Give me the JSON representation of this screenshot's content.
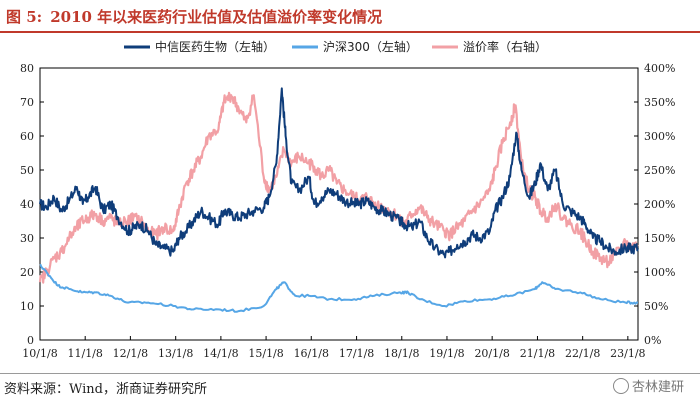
{
  "figure": {
    "label": "图 5:",
    "title": "2010 年以来医药行业估值及估值溢价率变化情况",
    "source": "资料来源：Wind，浙商证券研究所",
    "watermark": "杏林建研",
    "watermark_icon": "wechat-icon"
  },
  "chart_data": {
    "type": "line",
    "title": "2010 年以来医药行业估值及估值溢价率变化情况",
    "legend_position": "top",
    "grid": false,
    "x_ticks": [
      "10/1/8",
      "11/1/8",
      "12/1/8",
      "13/1/8",
      "14/1/8",
      "15/1/8",
      "16/1/8",
      "17/1/8",
      "18/1/8",
      "19/1/8",
      "20/1/8",
      "21/1/8",
      "22/1/8",
      "23/1/8"
    ],
    "x_range": [
      "2010-01-08",
      "2023-03-31"
    ],
    "y_left": {
      "ticks": [
        "0",
        "10",
        "20",
        "30",
        "40",
        "50",
        "60",
        "70",
        "80"
      ],
      "range": [
        0,
        80
      ]
    },
    "y_right": {
      "ticks": [
        "0%",
        "50%",
        "100%",
        "150%",
        "200%",
        "250%",
        "300%",
        "350%",
        "400%"
      ],
      "range": [
        0,
        4
      ]
    },
    "series": [
      {
        "name": "中信医药生物（左轴）",
        "axis": "left",
        "color": "#0f3d7a",
        "points": [
          [
            "2010-01-08",
            40
          ],
          [
            "2010-03-01",
            39
          ],
          [
            "2010-05-01",
            42
          ],
          [
            "2010-07-01",
            38
          ],
          [
            "2010-09-01",
            41
          ],
          [
            "2010-11-01",
            45
          ],
          [
            "2010-12-20",
            40
          ],
          [
            "2011-02-01",
            42
          ],
          [
            "2011-04-01",
            45
          ],
          [
            "2011-06-01",
            38
          ],
          [
            "2011-08-01",
            40
          ],
          [
            "2011-10-01",
            36
          ],
          [
            "2011-12-20",
            32
          ],
          [
            "2012-02-01",
            33
          ],
          [
            "2012-04-01",
            34
          ],
          [
            "2012-06-01",
            32
          ],
          [
            "2012-08-01",
            28
          ],
          [
            "2012-10-01",
            27
          ],
          [
            "2012-12-20",
            26
          ],
          [
            "2013-02-01",
            30
          ],
          [
            "2013-04-01",
            32
          ],
          [
            "2013-06-01",
            35
          ],
          [
            "2013-08-01",
            38
          ],
          [
            "2013-10-01",
            36
          ],
          [
            "2013-12-20",
            34
          ],
          [
            "2014-02-01",
            38
          ],
          [
            "2014-04-01",
            37
          ],
          [
            "2014-06-01",
            36
          ],
          [
            "2014-08-01",
            37
          ],
          [
            "2014-10-01",
            38
          ],
          [
            "2014-12-20",
            39
          ],
          [
            "2015-02-01",
            42
          ],
          [
            "2015-04-01",
            52
          ],
          [
            "2015-05-15",
            74
          ],
          [
            "2015-06-15",
            60
          ],
          [
            "2015-08-01",
            46
          ],
          [
            "2015-10-01",
            44
          ],
          [
            "2015-12-20",
            48
          ],
          [
            "2016-02-01",
            40
          ],
          [
            "2016-04-01",
            42
          ],
          [
            "2016-06-01",
            44
          ],
          [
            "2016-08-01",
            43
          ],
          [
            "2016-10-01",
            41
          ],
          [
            "2016-12-20",
            40
          ],
          [
            "2017-02-01",
            40
          ],
          [
            "2017-04-01",
            41
          ],
          [
            "2017-06-01",
            39
          ],
          [
            "2017-08-01",
            38
          ],
          [
            "2017-10-01",
            37
          ],
          [
            "2017-12-20",
            35
          ],
          [
            "2018-02-01",
            34
          ],
          [
            "2018-04-01",
            33
          ],
          [
            "2018-06-01",
            35
          ],
          [
            "2018-08-01",
            30
          ],
          [
            "2018-10-01",
            27
          ],
          [
            "2018-12-20",
            25
          ],
          [
            "2019-02-01",
            26
          ],
          [
            "2019-04-01",
            28
          ],
          [
            "2019-06-01",
            29
          ],
          [
            "2019-08-01",
            31
          ],
          [
            "2019-10-01",
            30
          ],
          [
            "2019-12-20",
            32
          ],
          [
            "2020-02-01",
            38
          ],
          [
            "2020-04-01",
            42
          ],
          [
            "2020-06-01",
            48
          ],
          [
            "2020-07-20",
            61
          ],
          [
            "2020-09-01",
            50
          ],
          [
            "2020-11-01",
            42
          ],
          [
            "2020-12-20",
            46
          ],
          [
            "2021-02-01",
            52
          ],
          [
            "2021-04-01",
            44
          ],
          [
            "2021-06-01",
            50
          ],
          [
            "2021-08-01",
            40
          ],
          [
            "2021-10-01",
            38
          ],
          [
            "2021-12-20",
            36
          ],
          [
            "2022-02-01",
            34
          ],
          [
            "2022-04-01",
            30
          ],
          [
            "2022-06-01",
            29
          ],
          [
            "2022-08-01",
            27
          ],
          [
            "2022-10-01",
            26
          ],
          [
            "2022-12-20",
            27
          ],
          [
            "2023-02-01",
            27
          ],
          [
            "2023-03-31",
            27
          ]
        ]
      },
      {
        "name": "沪深300（左轴）",
        "axis": "left",
        "color": "#56a6e6",
        "points": [
          [
            "2010-01-08",
            22
          ],
          [
            "2010-03-01",
            20
          ],
          [
            "2010-06-01",
            16
          ],
          [
            "2010-09-01",
            15
          ],
          [
            "2010-12-20",
            14
          ],
          [
            "2011-04-01",
            14
          ],
          [
            "2011-08-01",
            13
          ],
          [
            "2011-12-20",
            11
          ],
          [
            "2012-06-01",
            11
          ],
          [
            "2012-12-20",
            10
          ],
          [
            "2013-06-01",
            9
          ],
          [
            "2013-12-20",
            9
          ],
          [
            "2014-06-01",
            8.5
          ],
          [
            "2014-12-20",
            10
          ],
          [
            "2015-04-01",
            15
          ],
          [
            "2015-06-01",
            17
          ],
          [
            "2015-09-01",
            13
          ],
          [
            "2015-12-20",
            13
          ],
          [
            "2016-06-01",
            12
          ],
          [
            "2016-12-20",
            12
          ],
          [
            "2017-06-01",
            13
          ],
          [
            "2017-12-20",
            14
          ],
          [
            "2018-03-01",
            14
          ],
          [
            "2018-06-01",
            12
          ],
          [
            "2018-12-20",
            10
          ],
          [
            "2019-06-01",
            11.5
          ],
          [
            "2019-12-20",
            12
          ],
          [
            "2020-06-01",
            13
          ],
          [
            "2020-12-20",
            15
          ],
          [
            "2021-02-15",
            17
          ],
          [
            "2021-06-01",
            15
          ],
          [
            "2021-12-20",
            14
          ],
          [
            "2022-06-01",
            12
          ],
          [
            "2022-12-20",
            11
          ],
          [
            "2023-03-31",
            11
          ]
        ]
      },
      {
        "name": "溢价率（右轴）",
        "axis": "right",
        "color": "#f2a0a5",
        "points": [
          [
            "2010-01-08",
            0.85
          ],
          [
            "2010-03-01",
            1.0
          ],
          [
            "2010-05-01",
            1.2
          ],
          [
            "2010-07-01",
            1.3
          ],
          [
            "2010-09-01",
            1.5
          ],
          [
            "2010-11-01",
            1.65
          ],
          [
            "2010-12-20",
            1.75
          ],
          [
            "2011-02-01",
            1.8
          ],
          [
            "2011-04-01",
            1.85
          ],
          [
            "2011-06-01",
            1.75
          ],
          [
            "2011-08-01",
            1.8
          ],
          [
            "2011-10-01",
            1.7
          ],
          [
            "2011-12-20",
            1.75
          ],
          [
            "2012-02-01",
            1.8
          ],
          [
            "2012-04-01",
            1.75
          ],
          [
            "2012-06-01",
            1.6
          ],
          [
            "2012-08-01",
            1.55
          ],
          [
            "2012-10-01",
            1.65
          ],
          [
            "2012-12-20",
            1.6
          ],
          [
            "2013-02-01",
            1.9
          ],
          [
            "2013-04-01",
            2.3
          ],
          [
            "2013-06-01",
            2.5
          ],
          [
            "2013-08-01",
            2.7
          ],
          [
            "2013-10-01",
            3.0
          ],
          [
            "2013-12-20",
            3.1
          ],
          [
            "2014-02-01",
            3.5
          ],
          [
            "2014-04-01",
            3.6
          ],
          [
            "2014-06-01",
            3.4
          ],
          [
            "2014-08-01",
            3.2
          ],
          [
            "2014-10-01",
            3.6
          ],
          [
            "2014-12-20",
            2.4
          ],
          [
            "2015-02-01",
            2.2
          ],
          [
            "2015-04-01",
            2.4
          ],
          [
            "2015-06-01",
            2.8
          ],
          [
            "2015-08-01",
            2.6
          ],
          [
            "2015-10-01",
            2.7
          ],
          [
            "2015-12-20",
            2.6
          ],
          [
            "2016-02-01",
            2.55
          ],
          [
            "2016-04-01",
            2.4
          ],
          [
            "2016-06-01",
            2.5
          ],
          [
            "2016-08-01",
            2.3
          ],
          [
            "2016-10-01",
            2.2
          ],
          [
            "2016-12-20",
            2.1
          ],
          [
            "2017-02-01",
            2.05
          ],
          [
            "2017-04-01",
            2.1
          ],
          [
            "2017-06-01",
            2.0
          ],
          [
            "2017-08-01",
            1.95
          ],
          [
            "2017-10-01",
            1.9
          ],
          [
            "2017-12-20",
            1.8
          ],
          [
            "2018-02-01",
            1.7
          ],
          [
            "2018-04-01",
            1.85
          ],
          [
            "2018-06-01",
            1.95
          ],
          [
            "2018-08-01",
            1.8
          ],
          [
            "2018-10-01",
            1.7
          ],
          [
            "2018-12-20",
            1.6
          ],
          [
            "2019-02-01",
            1.55
          ],
          [
            "2019-04-01",
            1.65
          ],
          [
            "2019-06-01",
            1.75
          ],
          [
            "2019-08-01",
            1.9
          ],
          [
            "2019-10-01",
            2.0
          ],
          [
            "2019-12-20",
            2.2
          ],
          [
            "2020-02-01",
            2.5
          ],
          [
            "2020-04-01",
            2.9
          ],
          [
            "2020-06-01",
            3.2
          ],
          [
            "2020-07-15",
            3.45
          ],
          [
            "2020-09-01",
            2.6
          ],
          [
            "2020-11-01",
            2.2
          ],
          [
            "2020-12-20",
            2.1
          ],
          [
            "2021-02-01",
            1.9
          ],
          [
            "2021-04-01",
            1.8
          ],
          [
            "2021-06-01",
            2.0
          ],
          [
            "2021-08-01",
            1.8
          ],
          [
            "2021-10-01",
            1.7
          ],
          [
            "2021-12-20",
            1.6
          ],
          [
            "2022-02-01",
            1.45
          ],
          [
            "2022-04-01",
            1.3
          ],
          [
            "2022-06-01",
            1.2
          ],
          [
            "2022-08-01",
            1.15
          ],
          [
            "2022-10-01",
            1.25
          ],
          [
            "2022-12-20",
            1.45
          ],
          [
            "2023-02-01",
            1.35
          ],
          [
            "2023-03-31",
            1.4
          ]
        ]
      }
    ]
  }
}
